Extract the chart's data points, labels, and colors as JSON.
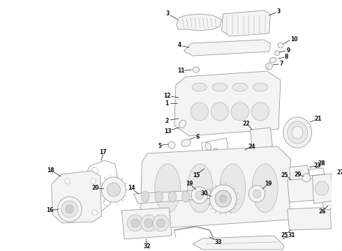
{
  "bg_color": "#ffffff",
  "lc": "#999999",
  "lc_dark": "#555555",
  "lw": 0.6,
  "lw_thin": 0.35,
  "fs_label": 5.5,
  "fs_small": 4.5
}
